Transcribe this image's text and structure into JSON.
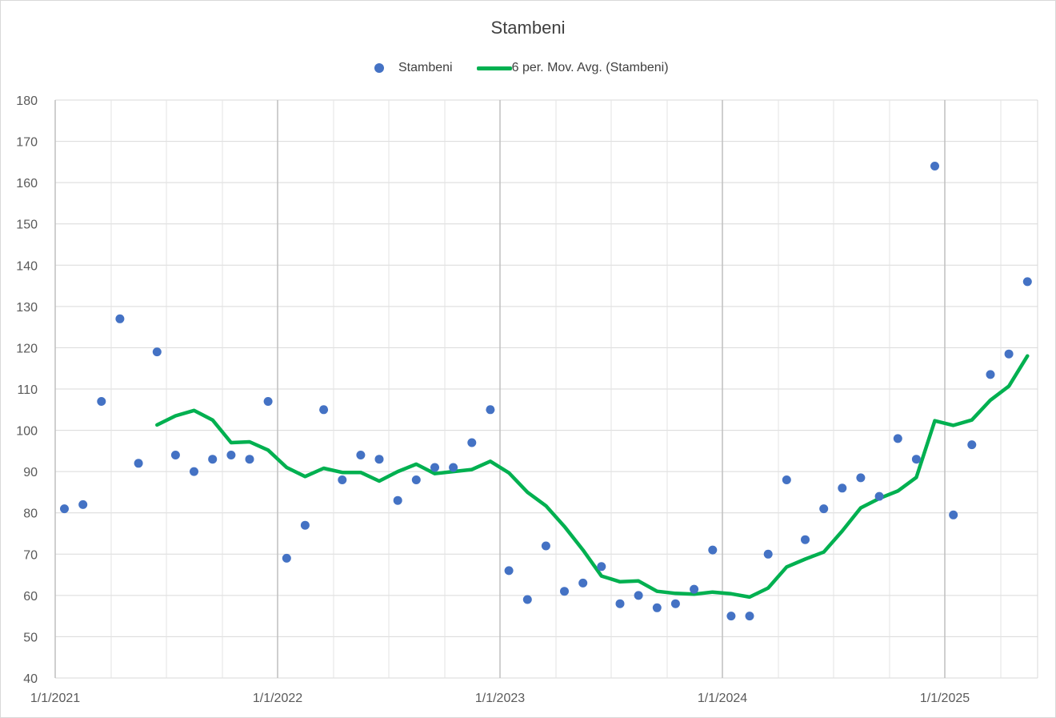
{
  "chart_data": {
    "type": "scatter",
    "title": "Stambeni",
    "xlabel": "",
    "ylabel": "",
    "ylim": [
      40,
      180
    ],
    "xlim": [
      "2021-01-01",
      "2025-06-01"
    ],
    "y_ticks": [
      40,
      50,
      60,
      70,
      80,
      90,
      100,
      110,
      120,
      130,
      140,
      150,
      160,
      170,
      180
    ],
    "x_ticks": [
      "1/1/2021",
      "1/1/2022",
      "1/1/2023",
      "1/1/2024",
      "1/1/2025"
    ],
    "grid": true,
    "legend_position": "top",
    "series": [
      {
        "name": "Stambeni",
        "kind": "scatter",
        "color": "#4472c4",
        "points": [
          {
            "x": "2021-01",
            "y": 81
          },
          {
            "x": "2021-02",
            "y": 82
          },
          {
            "x": "2021-03",
            "y": 107
          },
          {
            "x": "2021-04",
            "y": 127
          },
          {
            "x": "2021-05",
            "y": 92
          },
          {
            "x": "2021-06",
            "y": 119
          },
          {
            "x": "2021-07",
            "y": 94
          },
          {
            "x": "2021-08",
            "y": 90
          },
          {
            "x": "2021-09",
            "y": 93
          },
          {
            "x": "2021-10",
            "y": 94
          },
          {
            "x": "2021-11",
            "y": 93
          },
          {
            "x": "2021-12",
            "y": 107
          },
          {
            "x": "2022-01",
            "y": 69
          },
          {
            "x": "2022-02",
            "y": 77
          },
          {
            "x": "2022-03",
            "y": 105
          },
          {
            "x": "2022-04",
            "y": 88
          },
          {
            "x": "2022-05",
            "y": 94
          },
          {
            "x": "2022-06",
            "y": 93
          },
          {
            "x": "2022-07",
            "y": 83
          },
          {
            "x": "2022-08",
            "y": 88
          },
          {
            "x": "2022-09",
            "y": 91
          },
          {
            "x": "2022-10",
            "y": 91
          },
          {
            "x": "2022-11",
            "y": 97
          },
          {
            "x": "2022-12",
            "y": 105
          },
          {
            "x": "2023-01",
            "y": 66
          },
          {
            "x": "2023-02",
            "y": 59
          },
          {
            "x": "2023-03",
            "y": 72
          },
          {
            "x": "2023-04",
            "y": 61
          },
          {
            "x": "2023-05",
            "y": 63
          },
          {
            "x": "2023-06",
            "y": 67
          },
          {
            "x": "2023-07",
            "y": 58
          },
          {
            "x": "2023-08",
            "y": 60
          },
          {
            "x": "2023-09",
            "y": 57
          },
          {
            "x": "2023-10",
            "y": 58
          },
          {
            "x": "2023-11",
            "y": 61.5
          },
          {
            "x": "2023-12",
            "y": 71
          },
          {
            "x": "2024-01",
            "y": 55
          },
          {
            "x": "2024-02",
            "y": 55
          },
          {
            "x": "2024-03",
            "y": 70
          },
          {
            "x": "2024-04",
            "y": 88
          },
          {
            "x": "2024-05",
            "y": 73.5
          },
          {
            "x": "2024-06",
            "y": 81
          },
          {
            "x": "2024-07",
            "y": 86
          },
          {
            "x": "2024-08",
            "y": 88.5
          },
          {
            "x": "2024-09",
            "y": 84
          },
          {
            "x": "2024-10",
            "y": 98
          },
          {
            "x": "2024-11",
            "y": 93
          },
          {
            "x": "2024-12",
            "y": 164
          },
          {
            "x": "2025-01",
            "y": 79.5
          },
          {
            "x": "2025-02",
            "y": 96.5
          },
          {
            "x": "2025-03",
            "y": 113.5
          },
          {
            "x": "2025-04",
            "y": 118.5
          },
          {
            "x": "2025-05",
            "y": 136
          }
        ]
      },
      {
        "name": "6 per. Mov. Avg. (Stambeni)",
        "kind": "line",
        "color": "#00b050",
        "points": [
          {
            "x": "2021-06",
            "y": 101.3
          },
          {
            "x": "2021-07",
            "y": 103.5
          },
          {
            "x": "2021-08",
            "y": 104.8
          },
          {
            "x": "2021-09",
            "y": 102.5
          },
          {
            "x": "2021-10",
            "y": 97.0
          },
          {
            "x": "2021-11",
            "y": 97.2
          },
          {
            "x": "2021-12",
            "y": 95.2
          },
          {
            "x": "2022-01",
            "y": 91.0
          },
          {
            "x": "2022-02",
            "y": 88.8
          },
          {
            "x": "2022-03",
            "y": 90.8
          },
          {
            "x": "2022-04",
            "y": 89.8
          },
          {
            "x": "2022-05",
            "y": 89.8
          },
          {
            "x": "2022-06",
            "y": 87.7
          },
          {
            "x": "2022-07",
            "y": 90.0
          },
          {
            "x": "2022-08",
            "y": 91.8
          },
          {
            "x": "2022-09",
            "y": 89.5
          },
          {
            "x": "2022-10",
            "y": 90.0
          },
          {
            "x": "2022-11",
            "y": 90.5
          },
          {
            "x": "2022-12",
            "y": 92.5
          },
          {
            "x": "2023-01",
            "y": 89.7
          },
          {
            "x": "2023-02",
            "y": 85.0
          },
          {
            "x": "2023-03",
            "y": 81.7
          },
          {
            "x": "2023-04",
            "y": 76.7
          },
          {
            "x": "2023-05",
            "y": 71.0
          },
          {
            "x": "2023-06",
            "y": 64.7
          },
          {
            "x": "2023-07",
            "y": 63.3
          },
          {
            "x": "2023-08",
            "y": 63.5
          },
          {
            "x": "2023-09",
            "y": 61.0
          },
          {
            "x": "2023-10",
            "y": 60.5
          },
          {
            "x": "2023-11",
            "y": 60.3
          },
          {
            "x": "2023-12",
            "y": 60.8
          },
          {
            "x": "2024-01",
            "y": 60.4
          },
          {
            "x": "2024-02",
            "y": 59.6
          },
          {
            "x": "2024-03",
            "y": 61.8
          },
          {
            "x": "2024-04",
            "y": 66.9
          },
          {
            "x": "2024-05",
            "y": 68.8
          },
          {
            "x": "2024-06",
            "y": 70.5
          },
          {
            "x": "2024-07",
            "y": 75.6
          },
          {
            "x": "2024-08",
            "y": 81.2
          },
          {
            "x": "2024-09",
            "y": 83.5
          },
          {
            "x": "2024-10",
            "y": 85.3
          },
          {
            "x": "2024-11",
            "y": 88.6
          },
          {
            "x": "2024-12",
            "y": 102.3
          },
          {
            "x": "2025-01",
            "y": 101.2
          },
          {
            "x": "2025-02",
            "y": 102.5
          },
          {
            "x": "2025-03",
            "y": 107.3
          },
          {
            "x": "2025-04",
            "y": 110.7
          },
          {
            "x": "2025-05",
            "y": 118.0
          }
        ]
      }
    ]
  },
  "legend": {
    "scatter_label": "Stambeni",
    "line_label": "6 per. Mov. Avg. (Stambeni)"
  }
}
